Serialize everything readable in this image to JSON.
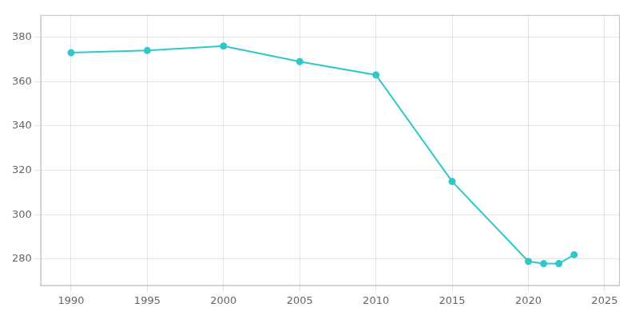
{
  "chart_data": {
    "type": "line",
    "x": [
      1990,
      1995,
      2000,
      2005,
      2010,
      2015,
      2020,
      2021,
      2022,
      2023
    ],
    "values": [
      373,
      374,
      376,
      369,
      363,
      315,
      279,
      278,
      278,
      282
    ],
    "color": "#2ec8c8",
    "marker": "circle",
    "xlim": [
      1988,
      2026
    ],
    "xticks": [
      1990,
      1995,
      2000,
      2005,
      2010,
      2015,
      2020,
      2025
    ],
    "ylim": [
      268,
      390
    ],
    "yticks": [
      280,
      300,
      320,
      340,
      360,
      380
    ],
    "grid": true
  }
}
